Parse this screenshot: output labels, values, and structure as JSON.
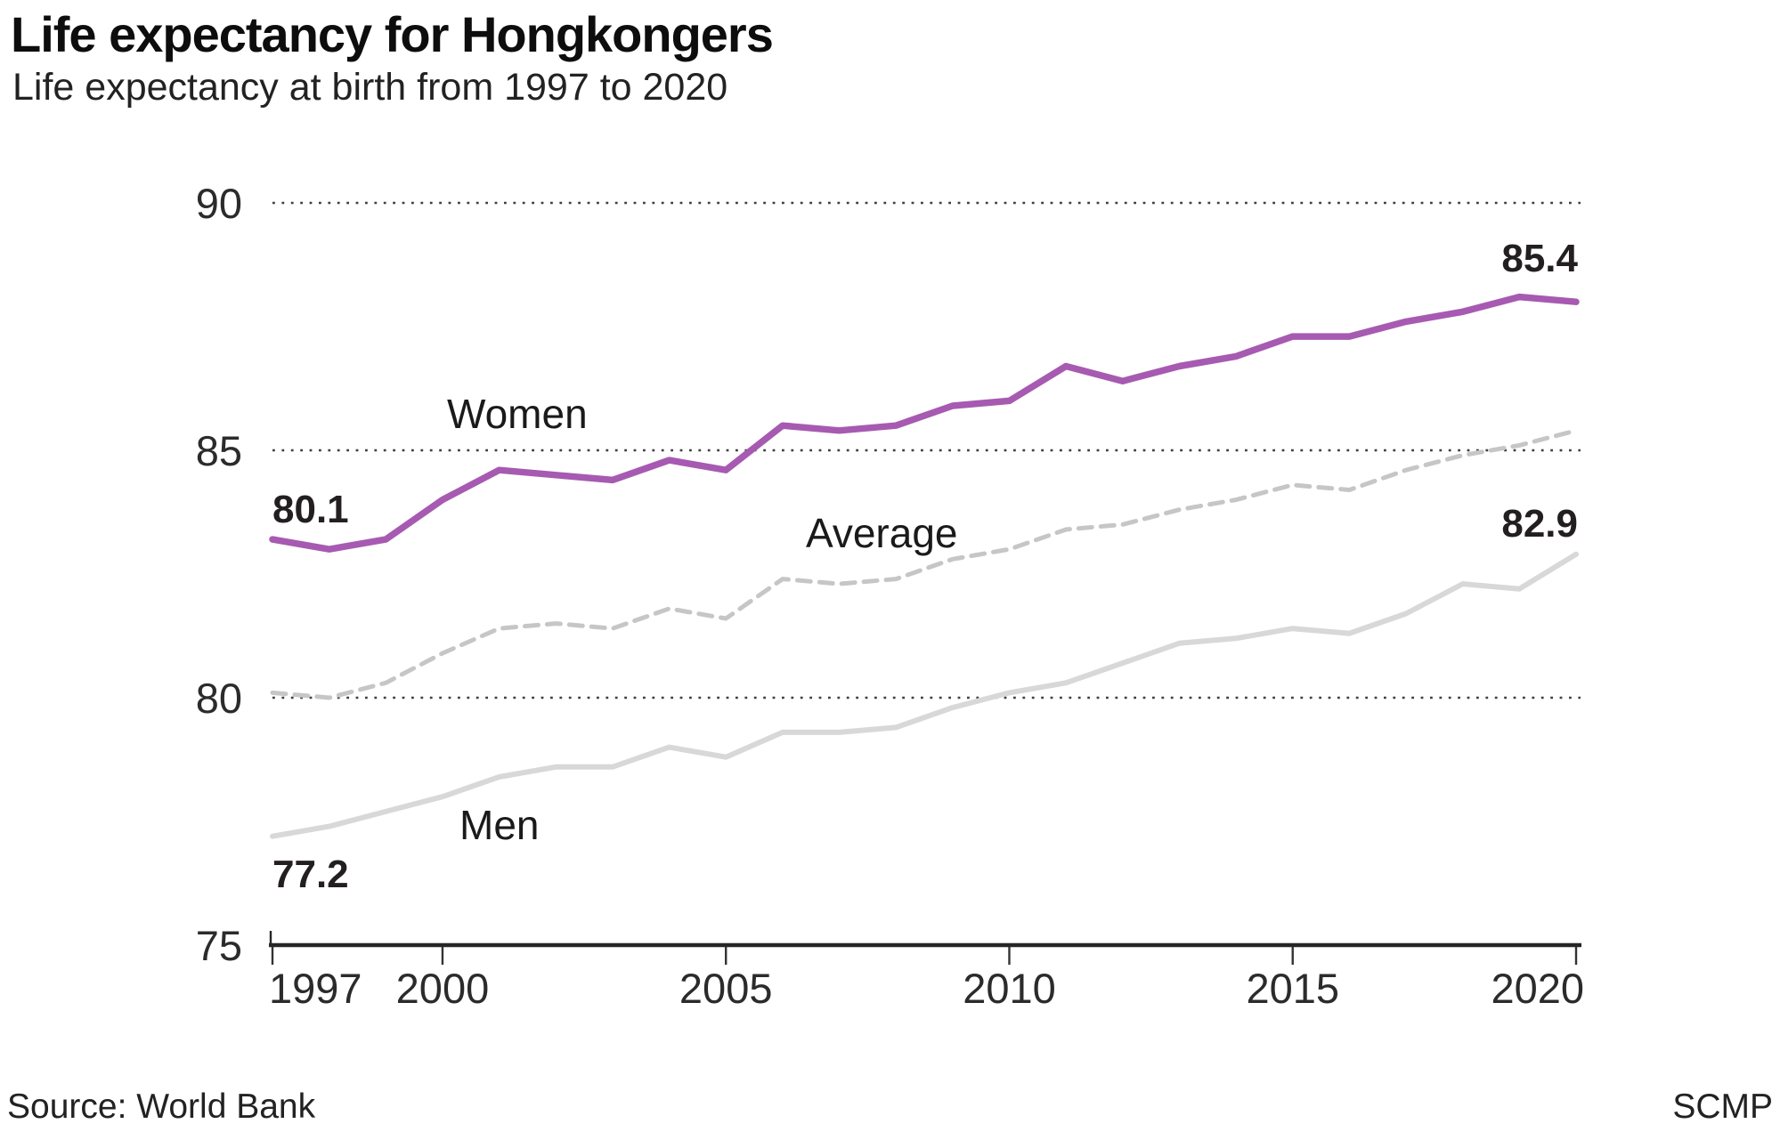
{
  "header": {
    "title": "Life expectancy for Hongkongers",
    "subtitle": "Life expectancy at birth from 1997 to 2020"
  },
  "footer": {
    "source": "Source: World Bank",
    "credit": "SCMP"
  },
  "colors": {
    "women_line": "#a75ab1",
    "average_line": "#c6c6c6",
    "men_line": "#d8d8d8",
    "gridline_dots": "#3f3f3f",
    "axis": "#262626",
    "text_dark": "#231f20"
  },
  "chart_data": {
    "type": "line",
    "x": [
      1997,
      1998,
      1999,
      2000,
      2001,
      2002,
      2003,
      2004,
      2005,
      2006,
      2007,
      2008,
      2009,
      2010,
      2011,
      2012,
      2013,
      2014,
      2015,
      2016,
      2017,
      2018,
      2019,
      2020
    ],
    "series": [
      {
        "name": "Women",
        "style": "solid",
        "color": "#a75ab1",
        "values": [
          83.2,
          83.0,
          83.2,
          84.0,
          84.6,
          84.5,
          84.4,
          84.8,
          84.6,
          85.5,
          85.4,
          85.5,
          85.9,
          86.0,
          86.7,
          86.4,
          86.7,
          86.9,
          87.3,
          87.3,
          87.6,
          87.8,
          88.1,
          88.0
        ]
      },
      {
        "name": "Average",
        "style": "dashed",
        "color": "#c6c6c6",
        "values": [
          80.1,
          80.0,
          80.3,
          80.9,
          81.4,
          81.5,
          81.4,
          81.8,
          81.6,
          82.4,
          82.3,
          82.4,
          82.8,
          83.0,
          83.4,
          83.5,
          83.8,
          84.0,
          84.3,
          84.2,
          84.6,
          84.9,
          85.1,
          85.4
        ]
      },
      {
        "name": "Men",
        "style": "solid",
        "color": "#d8d8d8",
        "values": [
          77.2,
          77.4,
          77.7,
          78.0,
          78.4,
          78.6,
          78.6,
          79.0,
          78.8,
          79.3,
          79.3,
          79.4,
          79.8,
          80.1,
          80.3,
          80.7,
          81.1,
          81.2,
          81.4,
          81.3,
          81.7,
          82.3,
          82.2,
          82.9
        ]
      }
    ],
    "title": "Life expectancy for Hongkongers",
    "subtitle": "Life expectancy at birth from 1997 to 2020",
    "xlabel": "",
    "ylabel": "",
    "ylim": [
      75,
      90
    ],
    "yticks": [
      90,
      85,
      80,
      75
    ],
    "xticks": [
      1997,
      2000,
      2005,
      2010,
      2015,
      2020
    ],
    "grid": "horizontal dotted at 80, 85, 90",
    "legend_position": "inline labels on lines",
    "annotations": {
      "avg_start": "80.1",
      "avg_end": "85.4",
      "men_start": "77.2",
      "men_end": "82.9"
    }
  }
}
